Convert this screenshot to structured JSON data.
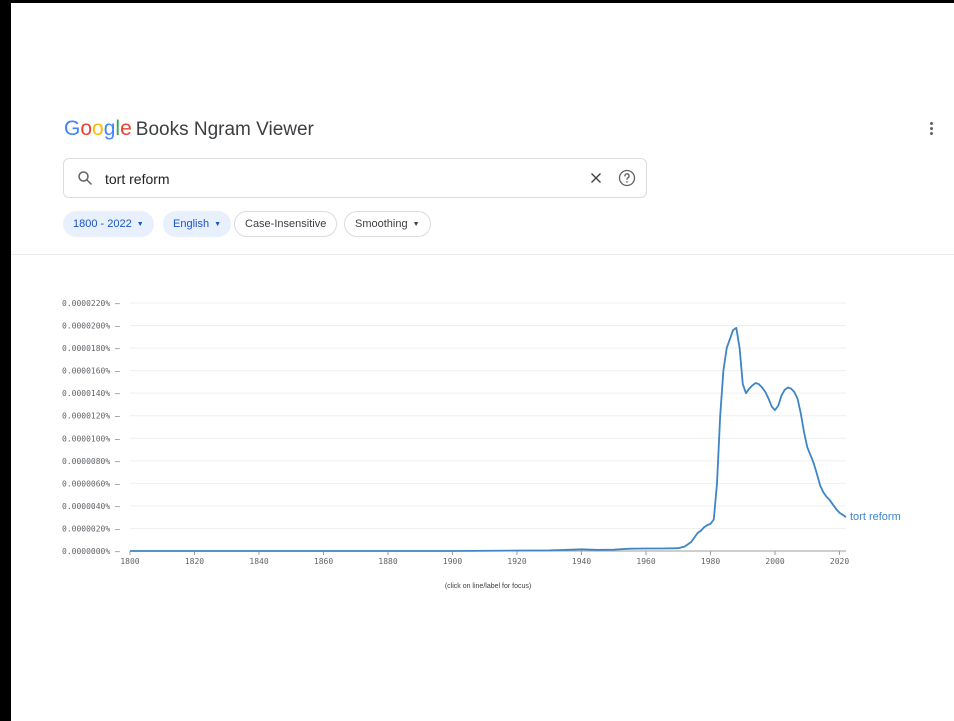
{
  "header": {
    "brand_letters": [
      {
        "char": "G",
        "color": "#4285F4"
      },
      {
        "char": "o",
        "color": "#EA4335"
      },
      {
        "char": "o",
        "color": "#FBBC05"
      },
      {
        "char": "g",
        "color": "#4285F4"
      },
      {
        "char": "l",
        "color": "#34A853"
      },
      {
        "char": "e",
        "color": "#EA4335"
      }
    ],
    "product_name": "Books Ngram Viewer",
    "menu_icon": "more-vert-icon"
  },
  "search": {
    "value": "tort reform",
    "icons": {
      "search": "search-icon",
      "clear": "close-icon",
      "help": "help-circle-icon"
    }
  },
  "filters": {
    "date_range": "1800 - 2022",
    "corpus": "English",
    "case": "Case-Insensitive",
    "smoothing": "Smoothing",
    "dropdown_glyph": "▼"
  },
  "colors": {
    "accent": "#1a56c8",
    "chip_active_bg": "#e8f0fe",
    "series_line": "#3d85c6"
  },
  "chart_data": {
    "type": "line",
    "title": "",
    "xlabel": "",
    "ylabel": "",
    "xlim": [
      1800,
      2022
    ],
    "ylim": [
      0,
      2.2e-05
    ],
    "y_unit": "%",
    "x_ticks": [
      1800,
      1820,
      1840,
      1860,
      1880,
      1900,
      1920,
      1940,
      1960,
      1980,
      2000,
      2020
    ],
    "y_ticks": [
      "0.0000000%",
      "0.0000020%",
      "0.0000040%",
      "0.0000060%",
      "0.0000080%",
      "0.0000100%",
      "0.0000120%",
      "0.0000140%",
      "0.0000160%",
      "0.0000180%",
      "0.0000200%",
      "0.0000220%"
    ],
    "grid": true,
    "footnote": "(click on line/label for focus)",
    "series": [
      {
        "name": "tort reform",
        "x": [
          1800,
          1900,
          1930,
          1935,
          1940,
          1945,
          1950,
          1955,
          1960,
          1965,
          1970,
          1972,
          1974,
          1975,
          1976,
          1977,
          1978,
          1979,
          1980,
          1981,
          1982,
          1983,
          1984,
          1985,
          1986,
          1987,
          1988,
          1989,
          1990,
          1991,
          1992,
          1993,
          1994,
          1995,
          1996,
          1997,
          1998,
          1999,
          2000,
          2001,
          2002,
          2003,
          2004,
          2005,
          2006,
          2007,
          2008,
          2009,
          2010,
          2011,
          2012,
          2013,
          2014,
          2015,
          2016,
          2017,
          2018,
          2019,
          2020,
          2021,
          2022
        ],
        "y": [
          0,
          0,
          5e-08,
          1e-07,
          1.5e-07,
          1e-07,
          1.2e-07,
          2e-07,
          2.2e-07,
          2.2e-07,
          2.5e-07,
          4e-07,
          8e-07,
          1.2e-06,
          1.6e-06,
          1.8e-06,
          2.1e-06,
          2.3e-06,
          2.4e-06,
          2.8e-06,
          6e-06,
          1.2e-05,
          1.6e-05,
          1.8e-05,
          1.88e-05,
          1.96e-05,
          1.98e-05,
          1.8e-05,
          1.48e-05,
          1.4e-05,
          1.44e-05,
          1.47e-05,
          1.49e-05,
          1.48e-05,
          1.45e-05,
          1.41e-05,
          1.35e-05,
          1.28e-05,
          1.25e-05,
          1.29e-05,
          1.38e-05,
          1.43e-05,
          1.45e-05,
          1.44e-05,
          1.41e-05,
          1.35e-05,
          1.22e-05,
          1.05e-05,
          9.2e-06,
          8.5e-06,
          7.8e-06,
          6.8e-06,
          5.8e-06,
          5.2e-06,
          4.8e-06,
          4.5e-06,
          4.1e-06,
          3.7e-06,
          3.4e-06,
          3.2e-06,
          3e-06
        ]
      }
    ]
  }
}
